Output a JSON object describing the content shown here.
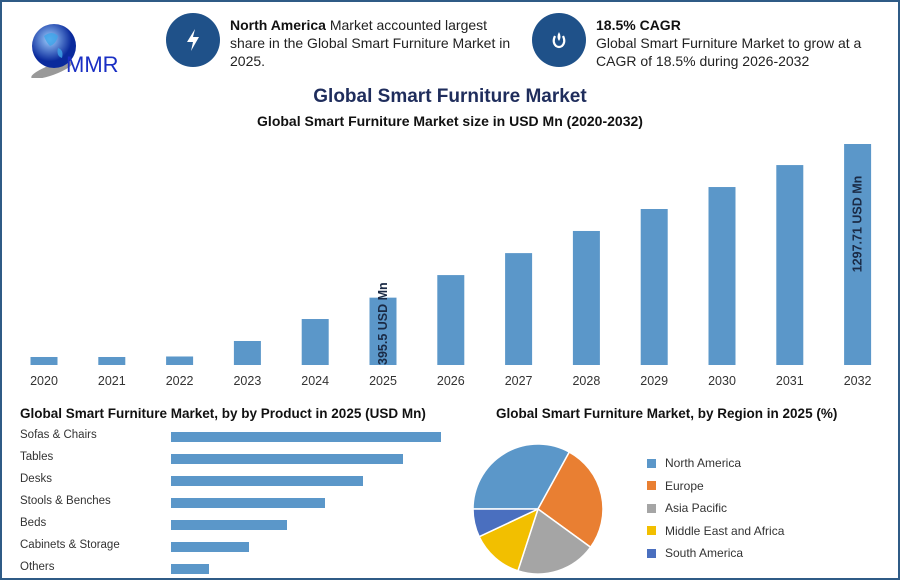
{
  "logo": {
    "text": "MMR"
  },
  "highlights": [
    {
      "icon": "lightning-icon",
      "bold": "North America",
      "text": " Market accounted largest share in the Global Smart Furniture Market in 2025."
    },
    {
      "icon": "growth-icon",
      "bold": "18.5% CAGR",
      "text": "Global Smart Furniture Market to grow at a CAGR of 18.5% during 2026-2032"
    }
  ],
  "colors": {
    "bar": "#5b97c9",
    "icon_bg": "#1f5189",
    "title": "#1f2d5c",
    "frame": "#2f5b86"
  },
  "chart_data": [
    {
      "type": "bar",
      "title": "Global Smart Furniture Market",
      "subtitle": "Global Smart Furniture Market size in USD Mn (2020-2032)",
      "categories": [
        "2020",
        "2021",
        "2022",
        "2023",
        "2024",
        "2025",
        "2026",
        "2027",
        "2028",
        "2029",
        "2030",
        "2031",
        "2032"
      ],
      "values": [
        47,
        47,
        50,
        141,
        270,
        395.5,
        528,
        657,
        787,
        916,
        1045,
        1174,
        1297.71
      ],
      "data_labels": {
        "2025": "395.5 USD Mn",
        "2032": "1297.71 USD Mn"
      },
      "grid": false
    },
    {
      "type": "bar",
      "orientation": "horizontal",
      "title": "Global Smart Furniture Market, by by Product in 2025 (USD Mn)",
      "categories": [
        "Sofas & Chairs",
        "Tables",
        "Desks",
        "Stools & Benches",
        "Beds",
        "Cabinets & Storage",
        "Others"
      ],
      "values_relative_percent": [
        100,
        86,
        71,
        57,
        43,
        29,
        14
      ]
    },
    {
      "type": "pie",
      "title": "Global Smart Furniture Market, by Region in 2025 (%)",
      "labels": [
        "North America",
        "Europe",
        "Asia Pacific",
        "Middle East and Africa",
        "South America"
      ],
      "values": [
        33,
        27,
        20,
        13,
        7
      ],
      "colors": [
        "#5b97c9",
        "#e97f32",
        "#a5a5a5",
        "#f2bf00",
        "#4a6fbf"
      ],
      "legend": "right"
    }
  ]
}
